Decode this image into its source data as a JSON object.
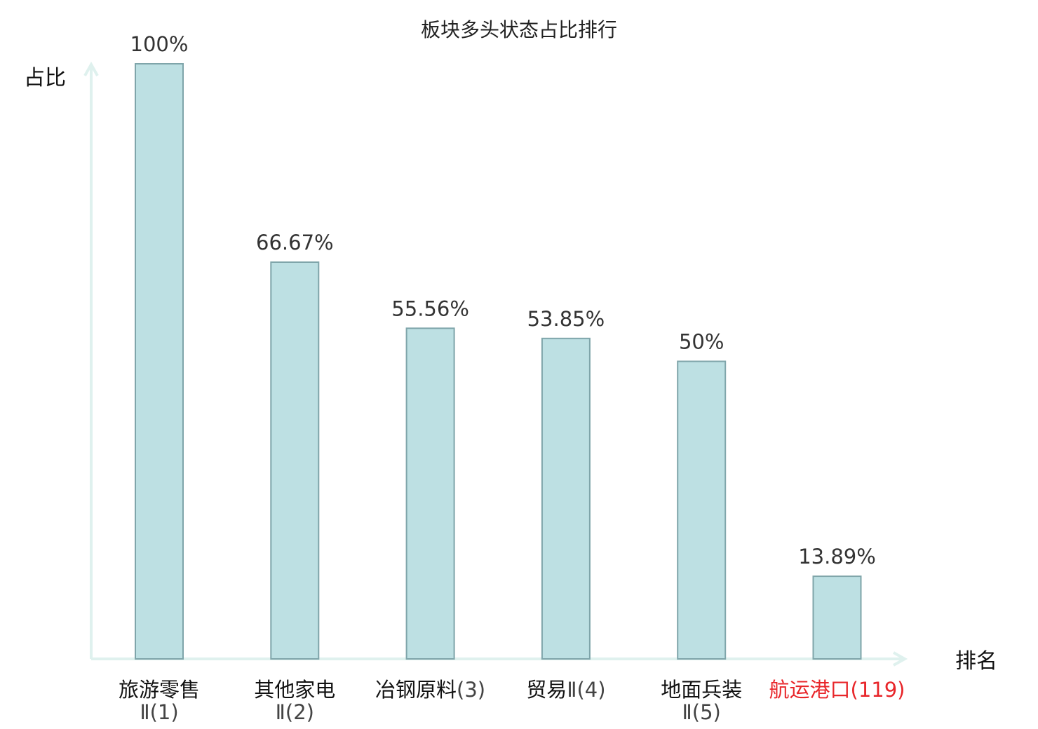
{
  "chart_data": {
    "type": "bar",
    "title": "板块多头状态占比排行",
    "ylabel": "占比",
    "xlabel": "排名",
    "ylim": [
      0,
      100
    ],
    "grid": false,
    "categories": [
      {
        "lines": [
          {
            "text": "旅游零售",
            "color": "#111111"
          },
          {
            "text": "Ⅱ(1)",
            "color": "#444444"
          }
        ]
      },
      {
        "lines": [
          {
            "text": "其他家电",
            "color": "#111111"
          },
          {
            "text": "Ⅱ(2)",
            "color": "#444444"
          }
        ]
      },
      {
        "lines": [
          {
            "text": "冶钢原料",
            "color": "#111111",
            "suffix": "(3)",
            "suffix_color": "#444444"
          }
        ]
      },
      {
        "lines": [
          {
            "text": "贸易",
            "color": "#111111",
            "suffix": "Ⅱ(4)",
            "suffix_color": "#444444"
          }
        ]
      },
      {
        "lines": [
          {
            "text": "地面兵装",
            "color": "#111111"
          },
          {
            "text": "Ⅱ(5)",
            "color": "#444444"
          }
        ]
      },
      {
        "lines": [
          {
            "text": "航运港口",
            "color": "#e8262a",
            "suffix": "(119)",
            "suffix_color": "#e8262a"
          }
        ]
      }
    ],
    "values": [
      100,
      66.67,
      55.56,
      53.85,
      50,
      13.89
    ],
    "value_labels": [
      "100%",
      "66.67%",
      "55.56%",
      "53.85%",
      "50%",
      "13.89%"
    ],
    "colors": {
      "bar_fill": "#bde0e3",
      "bar_stroke": "#7fa5aa",
      "axis": "#dff1ee",
      "highlight": "#e8262a"
    }
  }
}
